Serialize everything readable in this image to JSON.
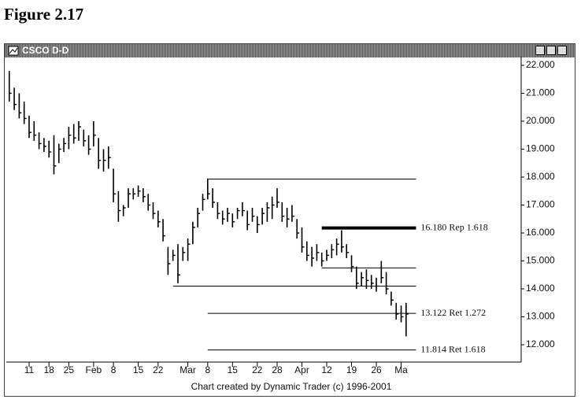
{
  "figure_title": "Figure 2.17",
  "chart_data": {
    "type": "ohlc",
    "title": "CSCO D-D",
    "footer": "Chart created by Dynamic Trader (c) 1996-2001",
    "color": "#000000",
    "high": [
      21.8,
      21.2,
      21.0,
      20.7,
      20.2,
      20.0,
      19.6,
      19.4,
      19.3,
      19.5,
      19.2,
      19.4,
      19.8,
      19.9,
      20.0,
      19.7,
      19.5,
      20.0,
      19.4,
      19.0,
      19.1,
      18.3,
      17.5,
      17.0,
      17.6,
      17.6,
      17.7,
      17.6,
      17.4,
      17.1,
      16.8,
      16.5,
      15.5,
      15.4,
      15.6,
      15.5,
      15.8,
      16.4,
      16.9,
      17.4,
      17.95,
      17.6,
      17.1,
      16.8,
      16.9,
      16.7,
      16.9,
      17.1,
      16.8,
      16.9,
      16.6,
      16.9,
      17.1,
      17.3,
      17.6,
      17.1,
      16.9,
      17.0,
      16.5,
      16.2,
      15.7,
      15.5,
      15.6,
      15.3,
      15.4,
      15.6,
      15.8,
      16.1,
      15.6,
      15.2,
      14.8,
      14.6,
      14.7,
      14.5,
      14.4,
      15.0,
      14.6,
      13.9,
      13.5,
      13.4,
      13.5
    ],
    "low": [
      20.7,
      20.4,
      20.1,
      19.9,
      19.4,
      19.3,
      19.0,
      18.9,
      18.7,
      18.1,
      18.5,
      18.9,
      19.0,
      19.2,
      19.3,
      19.1,
      18.8,
      19.1,
      18.3,
      18.2,
      18.3,
      17.1,
      16.4,
      16.6,
      16.9,
      17.2,
      17.3,
      17.1,
      16.8,
      16.5,
      16.2,
      15.7,
      14.5,
      15.0,
      14.2,
      15.0,
      15.0,
      15.6,
      16.2,
      16.8,
      17.2,
      16.9,
      16.5,
      16.3,
      16.4,
      16.2,
      16.5,
      16.6,
      16.1,
      16.4,
      16.0,
      16.3,
      16.4,
      16.5,
      16.9,
      16.4,
      16.2,
      16.4,
      15.8,
      15.3,
      15.0,
      14.8,
      15.0,
      14.8,
      15.0,
      15.1,
      15.2,
      15.3,
      15.1,
      14.6,
      14.0,
      14.1,
      14.0,
      14.0,
      13.9,
      14.2,
      13.8,
      13.4,
      12.9,
      12.8,
      12.3
    ],
    "close": [
      21.0,
      20.6,
      20.3,
      20.1,
      19.6,
      19.5,
      19.2,
      19.1,
      18.9,
      18.4,
      19.0,
      19.2,
      19.5,
      19.4,
      19.8,
      19.3,
      19.0,
      19.5,
      18.6,
      18.6,
      18.7,
      17.4,
      16.8,
      16.9,
      17.4,
      17.4,
      17.5,
      17.3,
      17.0,
      16.7,
      16.4,
      15.9,
      14.9,
      15.2,
      14.5,
      15.3,
      15.6,
      16.2,
      16.7,
      17.2,
      17.4,
      17.1,
      16.7,
      16.5,
      16.7,
      16.4,
      16.8,
      16.8,
      16.3,
      16.6,
      16.3,
      16.7,
      16.9,
      17.0,
      17.1,
      16.6,
      16.5,
      16.6,
      16.0,
      15.5,
      15.2,
      15.1,
      15.3,
      15.0,
      15.2,
      15.4,
      15.6,
      15.5,
      15.3,
      14.8,
      14.2,
      14.4,
      14.3,
      14.2,
      14.1,
      14.4,
      14.0,
      13.6,
      13.1,
      13.0,
      13.1
    ],
    "xlim": [
      -0.6,
      103.2
    ],
    "xticks": [
      {
        "value": 4,
        "label": "11"
      },
      {
        "value": 8,
        "label": "18"
      },
      {
        "value": 12,
        "label": "25"
      },
      {
        "value": 17,
        "label": "Feb"
      },
      {
        "value": 21,
        "label": "8"
      },
      {
        "value": 26,
        "label": "15"
      },
      {
        "value": 30,
        "label": "22"
      },
      {
        "value": 36,
        "label": "Mar"
      },
      {
        "value": 40,
        "label": "8"
      },
      {
        "value": 45,
        "label": "15"
      },
      {
        "value": 50,
        "label": "22"
      },
      {
        "value": 54,
        "label": "28"
      },
      {
        "value": 59,
        "label": "Apr"
      },
      {
        "value": 64,
        "label": "12"
      },
      {
        "value": 69,
        "label": "19"
      },
      {
        "value": 74,
        "label": "26"
      },
      {
        "value": 79,
        "label": "Ma"
      }
    ],
    "ylim": [
      11.38,
      22.31
    ],
    "yticks": [
      {
        "value": 22,
        "label": "22.000"
      },
      {
        "value": 21,
        "label": "21.000"
      },
      {
        "value": 20,
        "label": "20.000"
      },
      {
        "value": 19,
        "label": "19.000"
      },
      {
        "value": 18,
        "label": "18.000"
      },
      {
        "value": 17,
        "label": "17.000"
      },
      {
        "value": 16,
        "label": "16.000"
      },
      {
        "value": 15,
        "label": "15.000"
      },
      {
        "value": 14,
        "label": "14.000"
      },
      {
        "value": 13,
        "label": "13.000"
      },
      {
        "value": 12,
        "label": "12.000"
      }
    ],
    "levels": [
      {
        "value": 17.93,
        "start": 40
      },
      {
        "value": 16.18,
        "start": 63,
        "label": "16.180 Rep 1.618",
        "bold": true
      },
      {
        "value": 14.75,
        "start": 63
      },
      {
        "value": 14.1,
        "start": 33
      },
      {
        "value": 13.122,
        "start": 40,
        "label": "13.122 Ret 1.272"
      },
      {
        "value": 11.814,
        "start": 40,
        "label": "11.814 Ret 1.618"
      }
    ],
    "level_end": 82
  }
}
